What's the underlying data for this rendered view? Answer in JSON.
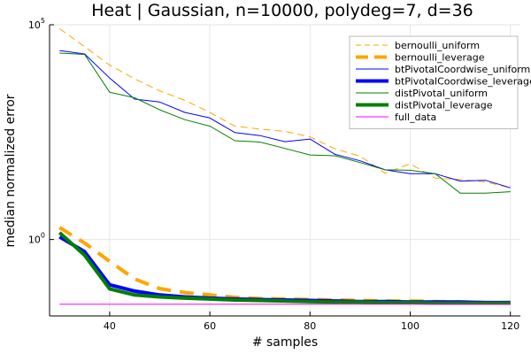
{
  "chart_data": {
    "type": "line",
    "title": "Heat | Gaussian, n=10000, polydeg=7, d=36",
    "xlabel": "# samples",
    "ylabel": "median normalized error",
    "y_scale": "log10",
    "xlim": [
      28,
      122
    ],
    "ylim": [
      0.0166,
      100000
    ],
    "x_ticks": [
      40,
      60,
      80,
      100,
      120
    ],
    "x_tick_labels": [
      "40",
      "60",
      "80",
      "100",
      "120"
    ],
    "y_ticks": [
      1,
      100000
    ],
    "y_tick_labels": {
      "1": {
        "base": "10",
        "exp": "0"
      },
      "100000": {
        "base": "10",
        "exp": "5"
      }
    },
    "grid": true,
    "legend_position": "top-right",
    "x": [
      30,
      35,
      40,
      45,
      50,
      55,
      60,
      65,
      70,
      75,
      80,
      85,
      90,
      95,
      100,
      105,
      110,
      115,
      120
    ],
    "series": [
      {
        "name": "bernoulli_uniform",
        "color": "#FFA500",
        "dash": "dashed",
        "width": 1,
        "values": [
          81283,
          30903,
          11482,
          5495,
          2884,
          1738,
          912,
          437,
          372,
          331,
          245,
          129,
          87,
          35,
          58,
          27,
          25,
          22,
          16
        ]
      },
      {
        "name": "bernoulli_leverage",
        "color": "#FFA500",
        "dash": "dashed",
        "width": 4,
        "values": [
          1.9,
          0.83,
          0.31,
          0.12,
          0.072,
          0.058,
          0.051,
          0.045,
          0.042,
          0.041,
          0.04,
          0.039,
          0.038,
          0.037,
          0.037,
          0.036,
          0.035,
          0.034,
          0.034
        ]
      },
      {
        "name": "btPivotalCoordwise_uniform",
        "color": "#0000FF",
        "dash": "solid",
        "width": 1,
        "values": [
          25119,
          20893,
          5754,
          1862,
          1585,
          912,
          676,
          309,
          263,
          190,
          219,
          96,
          68,
          42,
          34,
          34,
          23,
          24,
          16
        ]
      },
      {
        "name": "btPivotalCoordwise_leverage",
        "color": "#0000FF",
        "dash": "solid",
        "width": 4,
        "values": [
          1.15,
          0.52,
          0.088,
          0.063,
          0.051,
          0.046,
          0.043,
          0.041,
          0.04,
          0.039,
          0.038,
          0.037,
          0.036,
          0.036,
          0.035,
          0.035,
          0.035,
          0.034,
          0.034
        ]
      },
      {
        "name": "distPivotal_uniform",
        "color": "#008000",
        "dash": "solid",
        "width": 1,
        "values": [
          21878,
          20417,
          2692,
          1995,
          1047,
          617,
          437,
          200,
          186,
          132,
          93,
          89,
          62,
          42,
          41,
          34,
          12,
          12,
          13
        ]
      },
      {
        "name": "distPivotal_leverage",
        "color": "#008000",
        "dash": "solid",
        "width": 4,
        "values": [
          1.45,
          0.43,
          0.071,
          0.051,
          0.046,
          0.043,
          0.041,
          0.039,
          0.038,
          0.037,
          0.036,
          0.035,
          0.035,
          0.034,
          0.034,
          0.033,
          0.033,
          0.033,
          0.033
        ]
      },
      {
        "name": "full_data",
        "color": "#FF00FF",
        "dash": "solid",
        "width": 1,
        "values": [
          0.031,
          0.031,
          0.031,
          0.031,
          0.031,
          0.031,
          0.031,
          0.031,
          0.031,
          0.031,
          0.031,
          0.031,
          0.031,
          0.031,
          0.031,
          0.031,
          0.031,
          0.031,
          0.031
        ]
      }
    ]
  }
}
